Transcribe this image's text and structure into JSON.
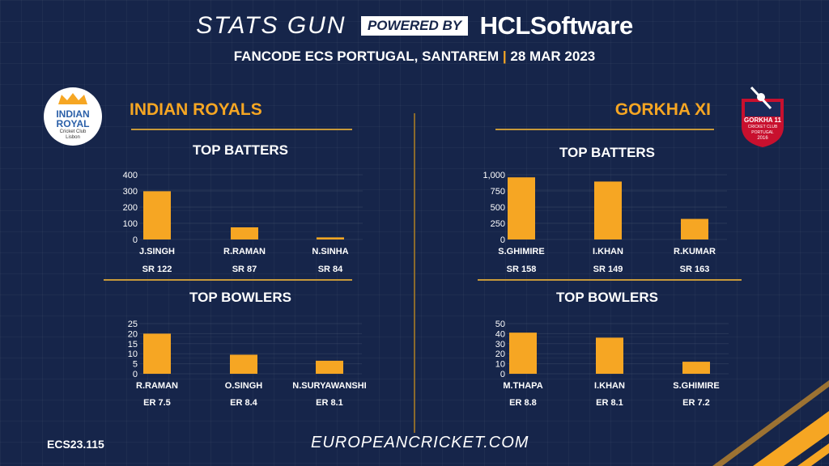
{
  "header": {
    "title_main": "STATS GUN",
    "powered_by": "POWERED BY",
    "brand": "HCLSoftware",
    "event": "FANCODE ECS PORTUGAL, SANTAREM",
    "date": "28 MAR 2023"
  },
  "teams": {
    "left": {
      "name": "INDIAN ROYALS",
      "logo_text_1": "INDIAN",
      "logo_text_2": "ROYAL",
      "logo_text_3": "Cricket Club",
      "logo_text_4": "Lisbon"
    },
    "right": {
      "name": "GORKHA XI",
      "logo_text_1": "GORKHA 11",
      "logo_text_2": "CRICKET CLUB",
      "logo_text_3": "PORTUGAL",
      "logo_text_4": "2016"
    }
  },
  "sections": {
    "batters": "TOP BATTERS",
    "bowlers": "TOP BOWLERS"
  },
  "footer": {
    "code": "ECS23.115",
    "site": "EUROPEANCRICKET.COM"
  },
  "colors": {
    "background": "#16254a",
    "accent": "#f6a623",
    "gold_line": "#c7993a"
  },
  "chart_data": [
    {
      "type": "bar",
      "title": "TOP BATTERS",
      "team": "INDIAN ROYALS",
      "categories": [
        "J.SINGH",
        "R.RAMAN",
        "N.SINHA"
      ],
      "values": [
        298,
        75,
        13
      ],
      "sublabels": [
        "SR 122",
        "SR 87",
        "SR 84"
      ],
      "yticks": [
        "0",
        "100",
        "200",
        "300",
        "400"
      ],
      "ylim": [
        0,
        400
      ]
    },
    {
      "type": "bar",
      "title": "TOP BOWLERS",
      "team": "INDIAN ROYALS",
      "categories": [
        "R.RAMAN",
        "O.SINGH",
        "N.SURYAWANSHI"
      ],
      "values": [
        20,
        9.5,
        6.5
      ],
      "sublabels": [
        "ER 7.5",
        "ER 8.4",
        "ER 8.1"
      ],
      "yticks": [
        "0",
        "5",
        "10",
        "15",
        "20",
        "25"
      ],
      "ylim": [
        0,
        25
      ]
    },
    {
      "type": "bar",
      "title": "TOP BATTERS",
      "team": "GORKHA XI",
      "categories": [
        "S.GHIMIRE",
        "I.KHAN",
        "R.KUMAR"
      ],
      "values": [
        960,
        895,
        318
      ],
      "sublabels": [
        "SR 158",
        "SR 149",
        "SR 163"
      ],
      "yticks": [
        "0",
        "250",
        "500",
        "750",
        "1,000"
      ],
      "ylim": [
        0,
        1000
      ]
    },
    {
      "type": "bar",
      "title": "TOP BOWLERS",
      "team": "GORKHA XI",
      "categories": [
        "M.THAPA",
        "I.KHAN",
        "S.GHIMIRE"
      ],
      "values": [
        41,
        36,
        12
      ],
      "sublabels": [
        "ER 8.8",
        "ER 8.1",
        "ER 7.2"
      ],
      "yticks": [
        "0",
        "10",
        "20",
        "30",
        "40",
        "50"
      ],
      "ylim": [
        0,
        50
      ]
    }
  ]
}
